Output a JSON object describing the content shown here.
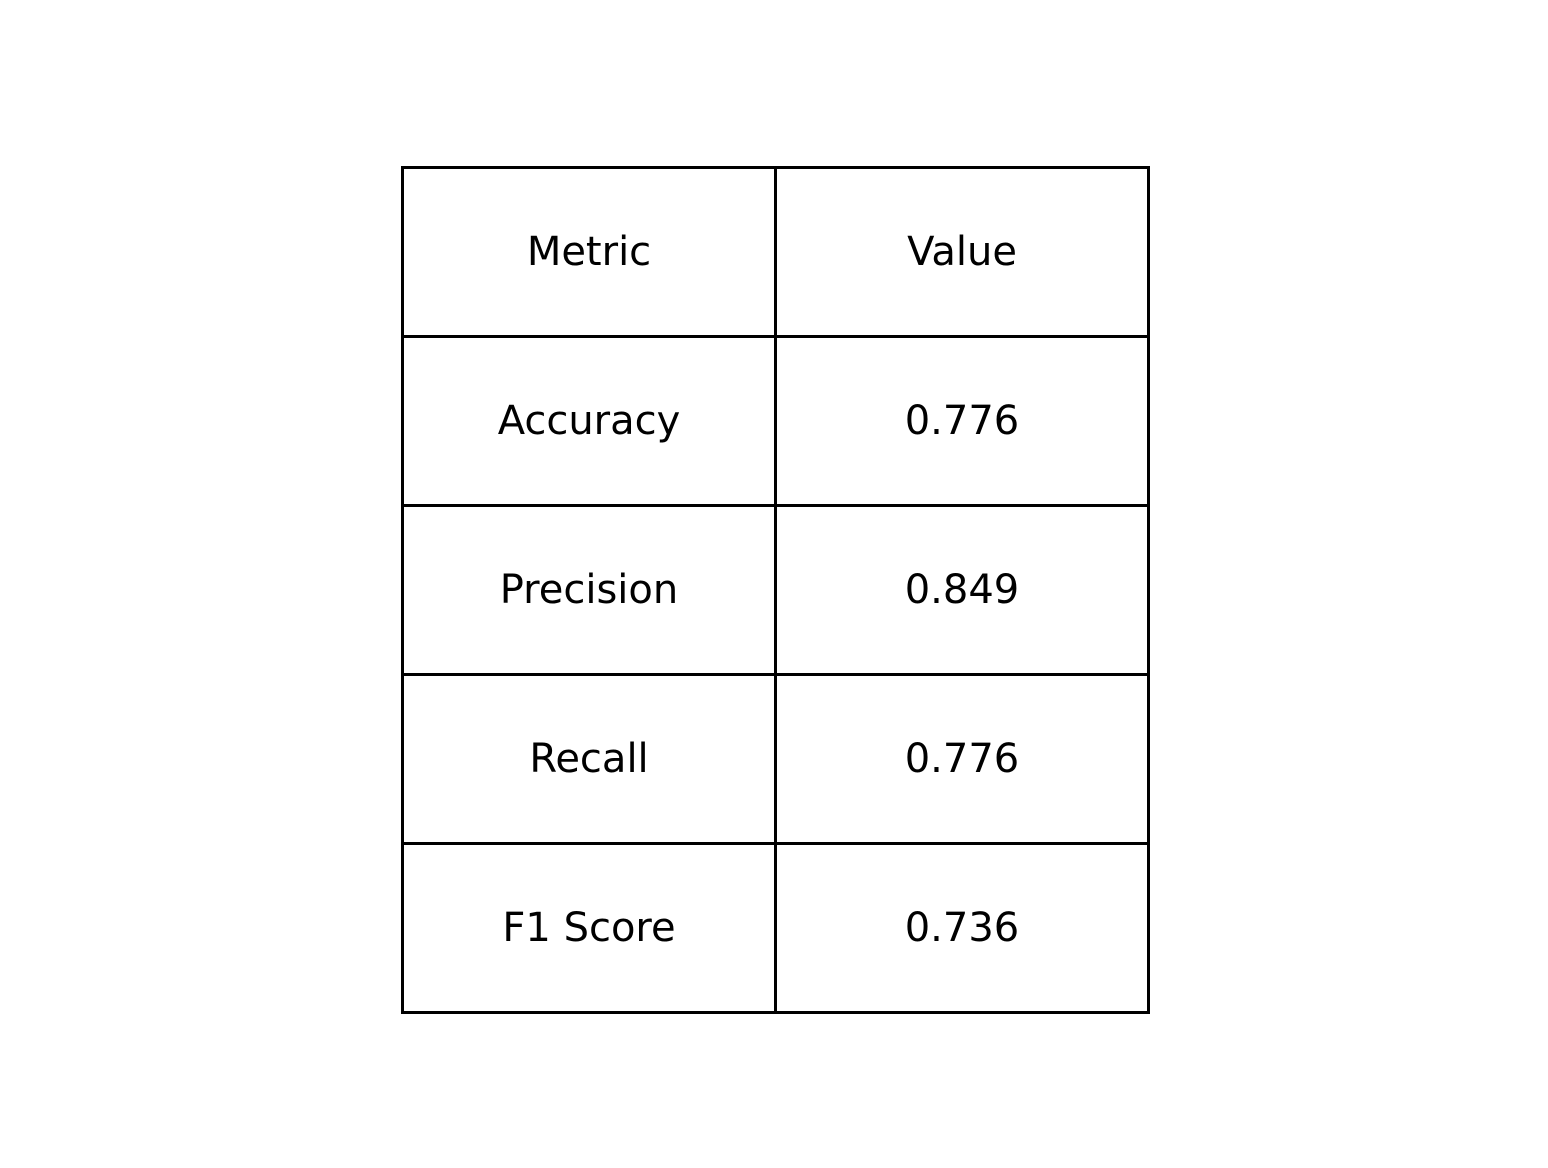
{
  "chart_data": {
    "type": "table",
    "columns": [
      "Metric",
      "Value"
    ],
    "rows": [
      {
        "metric": "Accuracy",
        "value": "0.776"
      },
      {
        "metric": "Precision",
        "value": "0.849"
      },
      {
        "metric": "Recall",
        "value": "0.776"
      },
      {
        "metric": "F1 Score",
        "value": "0.736"
      }
    ]
  }
}
